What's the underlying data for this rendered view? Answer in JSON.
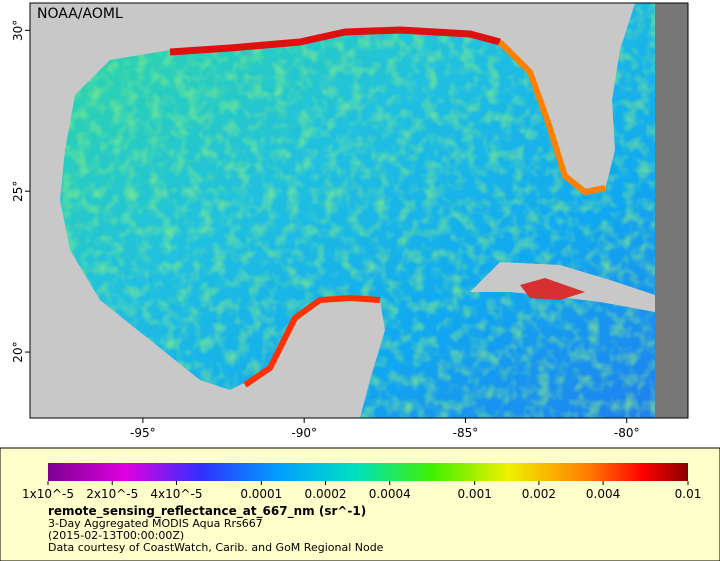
{
  "map": {
    "credit": "NOAA/AOML",
    "xlim": [
      -98.5,
      -78.1
    ],
    "ylim": [
      17.95,
      30.85
    ],
    "xticks": [
      {
        "value": -95,
        "label": "-95°"
      },
      {
        "value": -90,
        "label": "-90°"
      },
      {
        "value": -85,
        "label": "-85°"
      },
      {
        "value": -80,
        "label": "-80°"
      }
    ],
    "yticks": [
      {
        "value": 20,
        "label": "20°"
      },
      {
        "value": 25,
        "label": "25°"
      },
      {
        "value": 30,
        "label": "30°"
      }
    ]
  },
  "legend": {
    "log_scale": true,
    "range": [
      1e-05,
      0.01
    ],
    "ticks": [
      {
        "value": 1e-05,
        "label": "1x10^-5"
      },
      {
        "value": 2e-05,
        "label": "2x10^-5"
      },
      {
        "value": 4e-05,
        "label": "4x10^-5"
      },
      0.0001,
      0.0002,
      0.0004,
      0.001,
      0.002,
      0.004,
      0.01
    ],
    "title": "remote_sensing_reflectance_at_667_nm (sr^-1)",
    "lines": [
      "3-Day Aggregated MODIS Aqua Rrs667",
      "(2015-02-13T00:00:00Z)",
      "Data courtesy of CoastWatch, Carib. and GoM Regional Node"
    ]
  }
}
